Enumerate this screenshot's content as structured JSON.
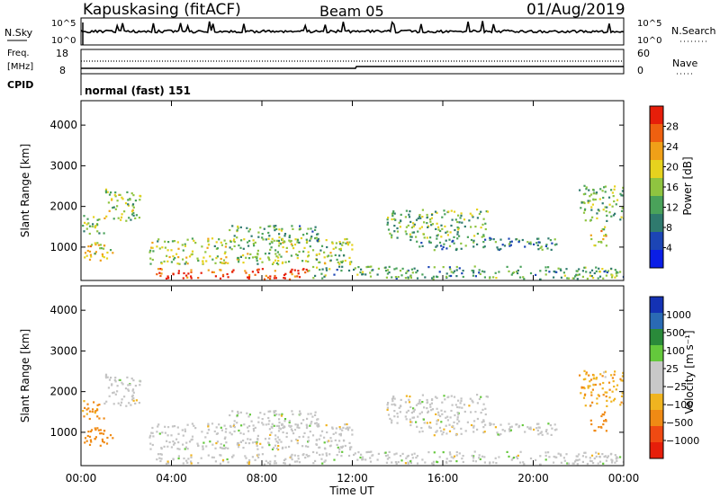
{
  "header": {
    "station": "Kapuskasing (fitACF)",
    "beam": "Beam 05",
    "date": "01/Aug/2019"
  },
  "noise_panel": {
    "left_label": "N.Sky",
    "right_label": "N.Search",
    "left_ticks": [
      "10^5",
      "10^0"
    ],
    "right_ticks": [
      "10^5",
      "10^0"
    ]
  },
  "freq_panel": {
    "left_label_1": "Freq.",
    "left_label_2": "[MHz]",
    "right_label": "Nave",
    "left_ticks": [
      "18",
      "8"
    ],
    "right_ticks": [
      "60",
      "0"
    ]
  },
  "cpid_panel": {
    "label": "CPID",
    "value": "normal (fast) 151"
  },
  "power_panel": {
    "ylabel": "Slant Range [km]",
    "colorbar_label": "Power [dB]",
    "colorbar_ticks": [
      "28",
      "24",
      "20",
      "16",
      "12",
      "8",
      "4"
    ],
    "colors": [
      "#0a1ee6",
      "#1c45b5",
      "#2f7a6e",
      "#4aa25a",
      "#8fc440",
      "#e6d21e",
      "#f0a018",
      "#ee6010",
      "#e61e0a"
    ]
  },
  "velocity_panel": {
    "ylabel": "Slant Range [km]",
    "colorbar_label": "Velocity [m s⁻¹]",
    "colorbar_ticks": [
      "1000",
      "500",
      "100",
      "25",
      "−25",
      "−100",
      "−500",
      "−1000"
    ],
    "colors": [
      "#e61e0a",
      "#f04a12",
      "#f08a14",
      "#f0b420",
      "#c8c8c8",
      "#c8c8c8",
      "#64c83c",
      "#2a8a3a",
      "#2a6ab4",
      "#1432b4"
    ],
    "ground_scatter_color": "#c4c4c4"
  },
  "x_axis": {
    "label": "Time UT",
    "ticks": [
      "00:00",
      "04:00",
      "08:00",
      "12:00",
      "16:00",
      "20:00",
      "00:00"
    ]
  },
  "chart_data": {
    "type": "heatmap",
    "xlabel": "Time UT",
    "ylabel": "Slant Range [km]",
    "xlim": [
      0,
      24
    ],
    "ylim": [
      180,
      4600
    ],
    "y_ticks": [
      1000,
      2000,
      3000,
      4000
    ],
    "noise_series": {
      "n_sky_typical": "~10^3",
      "n_search_typical": "~10^3"
    },
    "frequency_mhz": 10.5,
    "nave": 30,
    "scatter_regions": [
      {
        "t_start": 0.0,
        "t_end": 1.4,
        "r_min": 600,
        "r_max": 1100,
        "power_db": 20,
        "velocity": -300
      },
      {
        "t_start": 0.0,
        "t_end": 1.0,
        "r_min": 1300,
        "r_max": 1800,
        "power_db": 14,
        "velocity": -150
      },
      {
        "t_start": 1.0,
        "t_end": 2.6,
        "r_min": 1600,
        "r_max": 2400,
        "power_db": 16,
        "velocity": 0
      },
      {
        "t_start": 3.3,
        "t_end": 10.0,
        "r_min": 180,
        "r_max": 450,
        "power_db": 30,
        "velocity": 0
      },
      {
        "t_start": 3.0,
        "t_end": 12.0,
        "r_min": 550,
        "r_max": 1200,
        "power_db": 16,
        "velocity": 0
      },
      {
        "t_start": 6.5,
        "t_end": 10.5,
        "r_min": 1100,
        "r_max": 1500,
        "power_db": 12,
        "velocity": 0
      },
      {
        "t_start": 10.0,
        "t_end": 24.0,
        "r_min": 180,
        "r_max": 500,
        "power_db": 12,
        "velocity": 20
      },
      {
        "t_start": 13.5,
        "t_end": 18.0,
        "r_min": 1200,
        "r_max": 1900,
        "power_db": 14,
        "velocity": 0
      },
      {
        "t_start": 14.5,
        "t_end": 21.0,
        "r_min": 900,
        "r_max": 1200,
        "power_db": 10,
        "velocity": 0
      },
      {
        "t_start": 22.0,
        "t_end": 24.0,
        "r_min": 1600,
        "r_max": 2500,
        "power_db": 14,
        "velocity": -80
      },
      {
        "t_start": 22.5,
        "t_end": 23.2,
        "r_min": 1000,
        "r_max": 1500,
        "power_db": 20,
        "velocity": -300
      }
    ]
  }
}
